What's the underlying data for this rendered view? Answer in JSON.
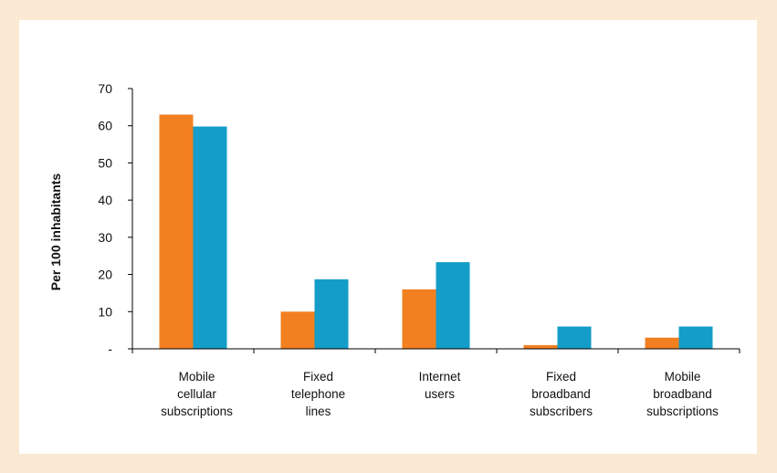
{
  "chart_data": {
    "type": "bar",
    "categories": [
      [
        "Mobile",
        "cellular",
        "subscriptions"
      ],
      [
        "Fixed",
        "telephone",
        "lines"
      ],
      [
        "Internet",
        "users"
      ],
      [
        "Fixed",
        "broadband",
        "subscribers"
      ],
      [
        "Mobile",
        "broadband",
        "subscriptions"
      ]
    ],
    "series": [
      {
        "color": "#F28021",
        "values": [
          63,
          10,
          16,
          1,
          3
        ]
      },
      {
        "color": "#139DC8",
        "values": [
          59.8,
          18.7,
          23.3,
          6,
          6
        ]
      }
    ],
    "ylabel": "Per 100 inhabitants",
    "ylim": [
      0,
      70
    ],
    "yticks": [
      0,
      10,
      20,
      30,
      40,
      50,
      60,
      70
    ],
    "ytick_labels": [
      "-",
      "10",
      "20",
      "30",
      "40",
      "50",
      "60",
      "70"
    ],
    "grid": false,
    "legend": "none"
  }
}
